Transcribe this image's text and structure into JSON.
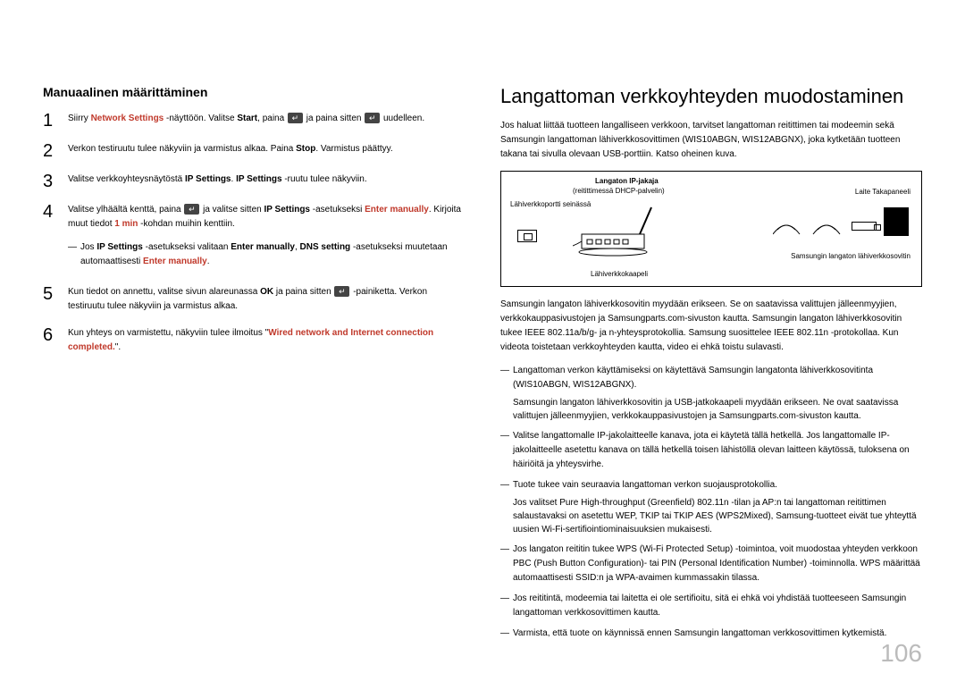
{
  "page_number": "106",
  "colors": {
    "accent_red": "#c0392b",
    "page_num_gray": "#bbbbbb"
  },
  "left": {
    "subheading": "Manuaalinen määrittäminen",
    "steps": [
      {
        "n": "1",
        "segments": [
          {
            "t": "Siirry "
          },
          {
            "t": "Network Settings",
            "red": true
          },
          {
            "t": " -näyttöön. Valitse "
          },
          {
            "t": "Start",
            "bold": true
          },
          {
            "t": ", paina "
          },
          {
            "icon": "enter"
          },
          {
            "t": " ja paina sitten "
          },
          {
            "icon": "enter"
          },
          {
            "t": " uudelleen."
          }
        ]
      },
      {
        "n": "2",
        "segments": [
          {
            "t": "Verkon testiruutu tulee näkyviin ja varmistus alkaa. Paina "
          },
          {
            "t": "Stop",
            "bold": true
          },
          {
            "t": ". Varmistus päättyy."
          }
        ]
      },
      {
        "n": "3",
        "segments": [
          {
            "t": "Valitse verkkoyhteysnäytöstä "
          },
          {
            "t": "IP Settings",
            "bold": true
          },
          {
            "t": ". "
          },
          {
            "t": "IP Settings",
            "bold": true
          },
          {
            "t": " -ruutu tulee näkyviin."
          }
        ]
      },
      {
        "n": "4",
        "segments": [
          {
            "t": "Valitse ylhäältä kenttä, paina "
          },
          {
            "icon": "enter"
          },
          {
            "t": " ja valitse sitten "
          },
          {
            "t": "IP Settings",
            "bold": true
          },
          {
            "t": " -asetukseksi "
          },
          {
            "t": "Enter manually",
            "red": true
          },
          {
            "t": ". Kirjoita muut tiedot "
          },
          {
            "t": "1 min",
            "red": true
          },
          {
            "t": " -kohdan muihin kenttiin."
          }
        ],
        "sub": [
          {
            "t": "Jos "
          },
          {
            "t": "IP Settings",
            "bold": true
          },
          {
            "t": " -asetukseksi valitaan "
          },
          {
            "t": "Enter manually",
            "bold": true
          },
          {
            "t": ", "
          },
          {
            "t": "DNS setting",
            "bold": true
          },
          {
            "t": " -asetukseksi muutetaan automaattisesti "
          },
          {
            "t": "Enter manually",
            "red": true
          },
          {
            "t": "."
          }
        ]
      },
      {
        "n": "5",
        "segments": [
          {
            "t": "Kun tiedot on annettu, valitse sivun alareunassa "
          },
          {
            "t": "OK",
            "bold": true
          },
          {
            "t": " ja paina sitten "
          },
          {
            "icon": "enter"
          },
          {
            "t": " -painiketta. Verkon testiruutu tulee näkyviin ja varmistus alkaa."
          }
        ]
      },
      {
        "n": "6",
        "segments": [
          {
            "t": "Kun yhteys on varmistettu, näkyviin tulee ilmoitus \""
          },
          {
            "t": "Wired network and Internet connection completed.",
            "red": true
          },
          {
            "t": "\"."
          }
        ]
      }
    ]
  },
  "right": {
    "heading": "Langattoman verkkoyhteyden muodostaminen",
    "intro": "Jos haluat liittää tuotteen langalliseen verkkoon, tarvitset langattoman reitittimen tai modeemin sekä Samsungin langattoman lähiverkkosovittimen (WIS10ABGN, WIS12ABGNX), joka kytketään tuotteen takana tai sivulla olevaan USB-porttiin. Katso oheinen kuva.",
    "diagram": {
      "label_router_top": "Langaton IP-jakaja",
      "label_router_sub": "(reitittimessä DHCP-palvelin)",
      "label_wall": "Lähiverkkoportti seinässä",
      "label_cable": "Lähiverkkokaapeli",
      "label_device": "Laite Takapaneeli",
      "label_adapter": "Samsungin langaton lähiverkkosovitin"
    },
    "para2": "Samsungin langaton lähiverkkosovitin myydään erikseen. Se on saatavissa valittujen jälleenmyyjien, verkkokauppasivustojen ja Samsungparts.com-sivuston kautta. Samsungin langaton lähiverkkosovitin tukee IEEE 802.11a/b/g- ja n-yhteysprotokollia. Samsung suosittelee IEEE 802.11n -protokollaa. Kun videota toistetaan verkkoyhteyden kautta, video ei ehkä toistu sulavasti.",
    "bullets": [
      {
        "main": "Langattoman verkon käyttämiseksi on käytettävä Samsungin langatonta lähiverkkosovitinta (WIS10ABGN, WIS12ABGNX).",
        "extra": "Samsungin langaton lähiverkkosovitin ja USB-jatkokaapeli myydään erikseen. Ne ovat saatavissa valittujen jälleenmyyjien, verkkokauppasivustojen ja Samsungparts.com-sivuston kautta."
      },
      {
        "main": "Valitse langattomalle IP-jakolaitteelle kanava, jota ei käytetä tällä hetkellä. Jos langattomalle IP-jakolaitteelle asetettu kanava on tällä hetkellä toisen lähistöllä olevan laitteen käytössä, tuloksena on häiriöitä ja yhteysvirhe."
      },
      {
        "main": "Tuote tukee vain seuraavia langattoman verkon suojausprotokollia.",
        "extra": "Jos valitset Pure High-throughput (Greenfield) 802.11n -tilan ja AP:n tai langattoman reitittimen salaustavaksi on asetettu WEP, TKIP tai TKIP AES (WPS2Mixed), Samsung-tuotteet eivät tue yhteyttä uusien Wi-Fi-sertifiointiominaisuuksien mukaisesti."
      },
      {
        "main": "Jos langaton reititin tukee WPS (Wi-Fi Protected Setup) -toimintoa, voit muodostaa yhteyden verkkoon PBC (Push Button Configuration)- tai PIN (Personal Identification Number) -toiminnolla. WPS määrittää automaattisesti SSID:n ja WPA-avaimen kummassakin tilassa."
      },
      {
        "main": "Jos reititintä, modeemia tai laitetta ei ole sertifioitu, sitä ei ehkä voi yhdistää tuotteeseen Samsungin langattoman verkkosovittimen kautta."
      },
      {
        "main": "Varmista, että tuote on käynnissä ennen Samsungin langattoman verkkosovittimen kytkemistä."
      }
    ]
  }
}
